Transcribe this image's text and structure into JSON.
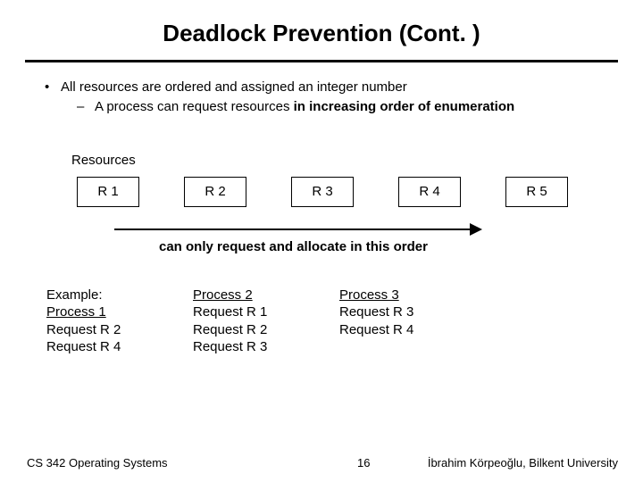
{
  "title": "Deadlock Prevention (Cont. )",
  "bullet1": "All resources are ordered and assigned an integer number",
  "bullet2_prefix": "A process can request resources ",
  "bullet2_bold": "in increasing order of enumeration",
  "resources_label": "Resources",
  "boxes": {
    "r1": "R 1",
    "r2": "R 2",
    "r3": "R 3",
    "r4": "R 4",
    "r5": "R 5"
  },
  "order_text": "can only request and allocate in this order",
  "example": {
    "col1": {
      "l1": "Example:",
      "l2": "Process 1",
      "l3": "Request R 2",
      "l4": "Request R 4"
    },
    "col2": {
      "l1": "Process 2",
      "l2": "Request R 1",
      "l3": "Request R 2",
      "l4": "Request R 3"
    },
    "col3": {
      "l1": "Process 3",
      "l2": "Request R 3",
      "l3": "Request R 4"
    }
  },
  "footer": {
    "left": "CS 342 Operating Systems",
    "mid": "16",
    "right": "İbrahim Körpeoğlu, Bilkent University"
  }
}
